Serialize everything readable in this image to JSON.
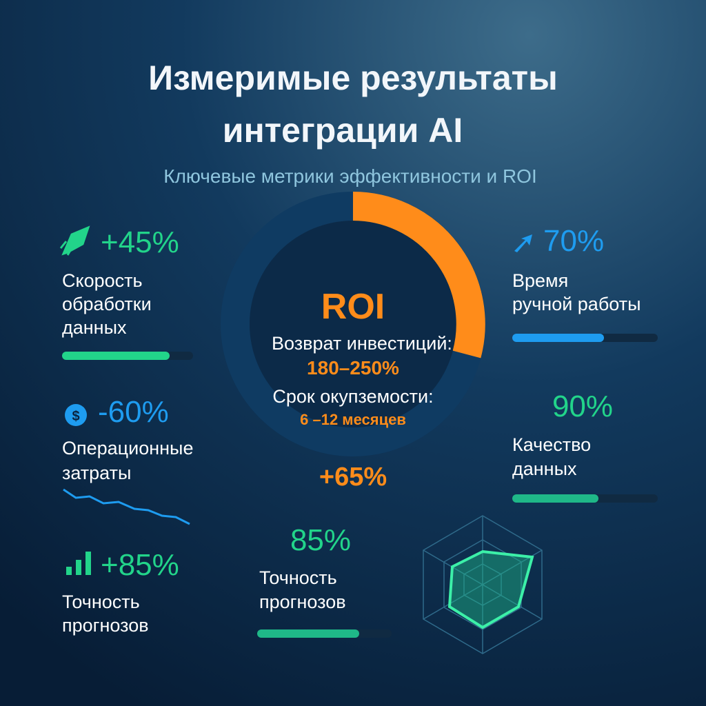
{
  "header": {
    "title_lines": [
      "Измеримые результаты",
      "интеграции AI"
    ],
    "subtitle": "Ключевые метрики эффективности и ROI"
  },
  "roi": {
    "title": "ROI",
    "return_label": "Возврат инвестиций:",
    "return_value": "180–250%",
    "payback_label": "Срок окупземости:",
    "payback_value": "6 –12 месяцев",
    "extra": "+65%"
  },
  "metrics": [
    {
      "value": "+45%",
      "label_lines": [
        "Скорость",
        "обработки",
        "данных"
      ]
    },
    {
      "value": "-60%",
      "label_lines": [
        "Операционные",
        "затраты"
      ]
    },
    {
      "value": "+85%",
      "label_lines": [
        "Точность",
        "прогнозов"
      ]
    },
    {
      "value": "70%",
      "label_lines": [
        "Время",
        "ручной работы"
      ]
    },
    {
      "value": "90%",
      "label_lines": [
        "Качество",
        "данных"
      ]
    },
    {
      "value": "85%",
      "label_lines": [
        "Точность",
        "прогнозов"
      ]
    }
  ]
}
